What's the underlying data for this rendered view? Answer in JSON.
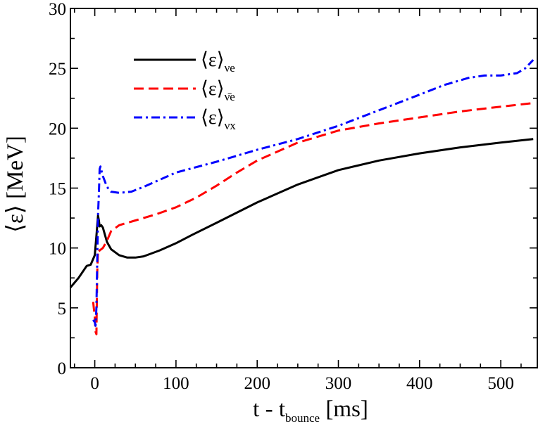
{
  "chart_data": {
    "type": "line",
    "xlabel": "t - t",
    "xlabel_sub": "bounce",
    "xlabel_unit": " [ms]",
    "ylabel": "⟨ε⟩ [MeV]",
    "xlim": [
      -30,
      545
    ],
    "ylim": [
      0,
      30
    ],
    "xticks": [
      0,
      100,
      200,
      300,
      400,
      500
    ],
    "yticks": [
      0,
      5,
      10,
      15,
      20,
      25,
      30
    ],
    "legend_position": "top-left",
    "series": [
      {
        "name": "⟨ε⟩",
        "sub": "νe",
        "color": "#000000",
        "dash": "solid",
        "x": [
          -30,
          -20,
          -10,
          -5,
          0,
          2,
          4,
          5,
          6,
          8,
          10,
          15,
          20,
          30,
          40,
          50,
          60,
          80,
          100,
          120,
          150,
          200,
          250,
          300,
          350,
          400,
          450,
          500,
          540
        ],
        "y": [
          6.7,
          7.5,
          8.5,
          8.6,
          9.4,
          11.0,
          12.7,
          12.3,
          11.8,
          11.9,
          11.7,
          10.5,
          9.9,
          9.4,
          9.2,
          9.2,
          9.3,
          9.8,
          10.4,
          11.1,
          12.1,
          13.8,
          15.3,
          16.5,
          17.3,
          17.9,
          18.4,
          18.8,
          19.1
        ]
      },
      {
        "name": "⟨ε⟩",
        "sub": "ν̄e",
        "color": "#ff0000",
        "dash": "dashed",
        "x": [
          -2,
          0,
          1,
          2,
          3,
          4,
          5,
          6,
          8,
          10,
          15,
          20,
          30,
          50,
          75,
          100,
          125,
          150,
          175,
          200,
          250,
          300,
          350,
          400,
          450,
          500,
          540
        ],
        "y": [
          5.5,
          4.2,
          3.0,
          2.8,
          8.0,
          9.8,
          9.7,
          9.8,
          9.9,
          10.0,
          10.6,
          11.4,
          11.9,
          12.3,
          12.8,
          13.4,
          14.2,
          15.2,
          16.3,
          17.3,
          18.8,
          19.8,
          20.4,
          20.9,
          21.4,
          21.8,
          22.1
        ]
      },
      {
        "name": "⟨ε⟩",
        "sub": "νx",
        "color": "#0000ff",
        "dash": "dashdot",
        "x": [
          -2,
          0,
          1,
          2,
          3,
          4,
          5,
          6,
          7,
          8,
          10,
          15,
          20,
          30,
          45,
          60,
          80,
          100,
          150,
          200,
          250,
          300,
          350,
          400,
          430,
          460,
          480,
          500,
          520,
          530,
          540
        ],
        "y": [
          4.0,
          3.8,
          3.5,
          5.0,
          9.0,
          12.8,
          14.5,
          16.6,
          16.8,
          16.5,
          16.0,
          15.1,
          14.7,
          14.6,
          14.7,
          15.1,
          15.7,
          16.3,
          17.2,
          18.2,
          19.1,
          20.2,
          21.5,
          22.8,
          23.6,
          24.2,
          24.4,
          24.4,
          24.6,
          25.0,
          25.7
        ]
      }
    ]
  }
}
